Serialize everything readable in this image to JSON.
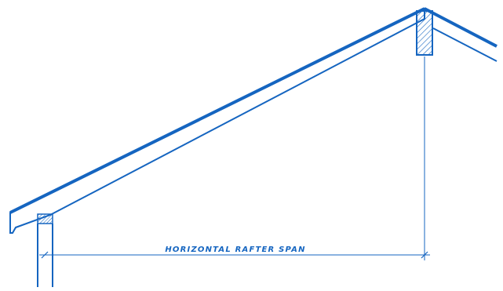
{
  "colors": {
    "line": "#1565c0",
    "fill": "#ffffff"
  },
  "diagram": {
    "span_label": "HORIZONTAL RAFTER SPAN"
  }
}
